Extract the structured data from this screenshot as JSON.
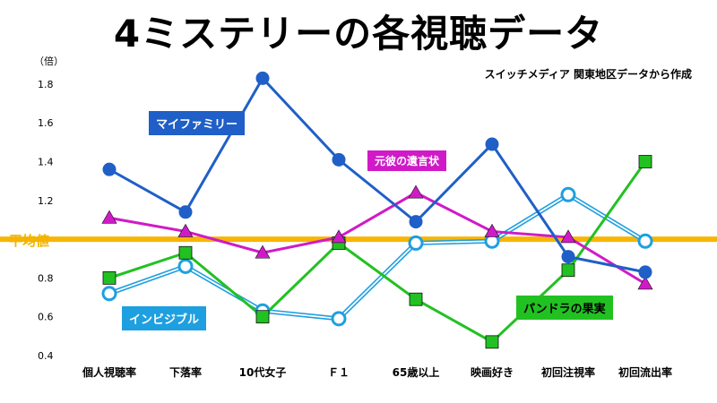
{
  "title": "4ミステリーの各視聴データ",
  "source": "スイッチメディア 関東地区データから作成",
  "unit": "（倍）",
  "average_label": "平均値",
  "colors": {
    "my_family": "#1f5fc7",
    "motokare": "#d01ac8",
    "invisible": "#1e9fe0",
    "pandora": "#22c122",
    "average": "#f7b500"
  },
  "chart_data": {
    "type": "line",
    "categories": [
      "個人視聴率",
      "下落率",
      "10代女子",
      "Ｆ１",
      "65歳以上",
      "映画好き",
      "初回注視率",
      "初回流出率"
    ],
    "ylim": [
      0.4,
      1.9
    ],
    "yticks": [
      0.4,
      0.6,
      0.8,
      1.0,
      1.2,
      1.4,
      1.6,
      1.8
    ],
    "ytick_labels": [
      "0.4",
      "0.6",
      "0.8",
      "",
      "1.2",
      "1.4",
      "1.6",
      "1.8"
    ],
    "average_value": 1.0,
    "series": [
      {
        "name": "マイファミリー",
        "values": [
          1.36,
          1.14,
          1.83,
          1.41,
          1.09,
          1.49,
          0.91,
          0.83
        ]
      },
      {
        "name": "元彼の遺言状",
        "values": [
          1.11,
          1.04,
          0.93,
          1.01,
          1.24,
          1.04,
          1.01,
          0.77
        ]
      },
      {
        "name": "インビジブル",
        "values": [
          0.72,
          0.86,
          0.63,
          0.59,
          0.98,
          0.99,
          1.23,
          0.99
        ]
      },
      {
        "name": "パンドラの果実",
        "values": [
          0.8,
          0.93,
          0.6,
          0.98,
          0.69,
          0.47,
          0.84,
          1.4
        ]
      }
    ]
  }
}
